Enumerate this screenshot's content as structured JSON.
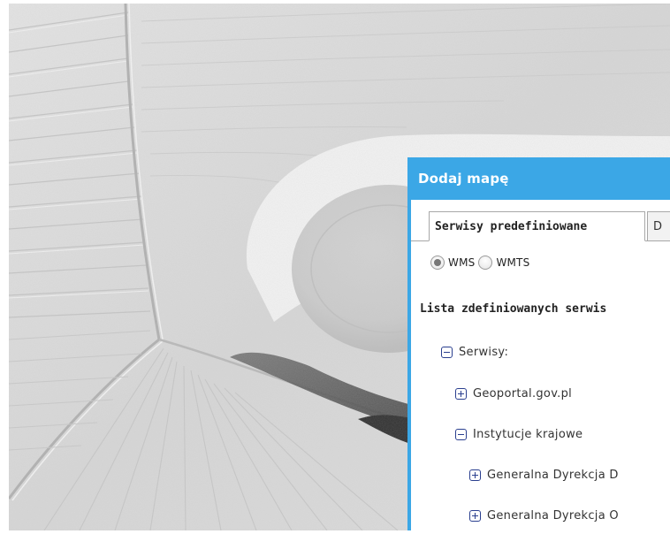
{
  "dialog": {
    "title": "Dodaj mapę",
    "tabs": [
      {
        "label": "Serwisy predefiniowane",
        "active": true
      },
      {
        "label": "D",
        "active": false
      }
    ],
    "service_type": {
      "options": [
        {
          "label": "WMS",
          "selected": true
        },
        {
          "label": "WMTS",
          "selected": false
        }
      ]
    },
    "list_heading": "Lista zdefiniowanych serwis",
    "tree": [
      {
        "label": "Serwisy:",
        "state": "expanded",
        "level": 0
      },
      {
        "label": "Geoportal.gov.pl",
        "state": "collapsed",
        "level": 1
      },
      {
        "label": "Instytucje krajowe",
        "state": "expanded",
        "level": 1
      },
      {
        "label": "Generalna Dyrekcja D",
        "state": "collapsed",
        "level": 2
      },
      {
        "label": "Generalna Dyrekcja O",
        "state": "collapsed",
        "level": 2
      }
    ]
  },
  "colors": {
    "dialog_accent": "#3ba7e6",
    "tree_icon": "#2a3f8f",
    "map_base": "#d9d9d9"
  },
  "icons": {
    "expanded": "minus-box-icon",
    "collapsed": "plus-box-icon"
  }
}
